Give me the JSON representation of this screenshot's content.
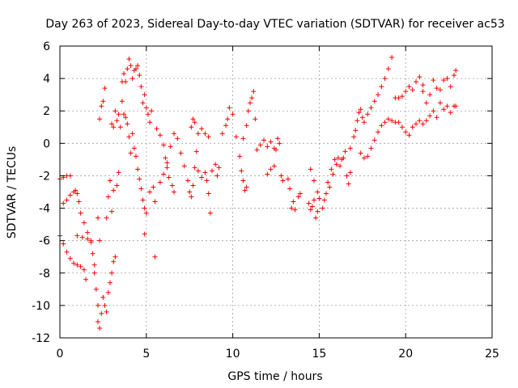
{
  "chart_data": {
    "type": "scatter",
    "title": "Day 263 of 2023, Sidereal Day-to-day VTEC variation (SDTVAR) for receiver ac53",
    "xlabel": "GPS time / hours",
    "ylabel": "SDTVAR / TECUs",
    "xlim": [
      0,
      25
    ],
    "ylim": [
      -12,
      6
    ],
    "xticks": [
      "0",
      "5",
      "10",
      "15",
      "20",
      "25"
    ],
    "yticks": [
      "6",
      "4",
      "2",
      "0",
      "-2",
      "-4",
      "-6",
      "-8",
      "-10",
      "-12"
    ],
    "grid": true,
    "marker": "+",
    "color": "#ff0000",
    "series": [
      {
        "name": "SDTVAR",
        "points": [
          [
            0.0,
            -2.2
          ],
          [
            0.2,
            -2.1
          ],
          [
            0.4,
            -2.0
          ],
          [
            0.6,
            -2.0
          ],
          [
            0.0,
            -5.7
          ],
          [
            0.2,
            -6.2
          ],
          [
            0.4,
            -6.7
          ],
          [
            0.6,
            -7.1
          ],
          [
            0.8,
            -7.4
          ],
          [
            1.0,
            -7.5
          ],
          [
            1.2,
            -7.6
          ],
          [
            1.4,
            -7.8
          ],
          [
            1.5,
            -8.4
          ],
          [
            0.2,
            -3.7
          ],
          [
            0.4,
            -3.5
          ],
          [
            0.6,
            -3.2
          ],
          [
            0.8,
            -3.0
          ],
          [
            0.9,
            -2.9
          ],
          [
            1.0,
            -3.1
          ],
          [
            1.1,
            -3.6
          ],
          [
            1.2,
            -4.3
          ],
          [
            1.4,
            -4.9
          ],
          [
            1.6,
            -5.5
          ],
          [
            1.8,
            -6.1
          ],
          [
            1.9,
            -6.8
          ],
          [
            2.0,
            -7.5
          ],
          [
            1.0,
            -5.7
          ],
          [
            1.3,
            -5.8
          ],
          [
            1.6,
            -5.9
          ],
          [
            1.8,
            -6.0
          ],
          [
            2.0,
            -8.0
          ],
          [
            2.1,
            -9.0
          ],
          [
            2.2,
            -10.0
          ],
          [
            2.2,
            -11.0
          ],
          [
            2.3,
            -11.4
          ],
          [
            2.4,
            -10.5
          ],
          [
            2.5,
            -9.5
          ],
          [
            2.6,
            -10.0
          ],
          [
            2.7,
            -10.4
          ],
          [
            2.8,
            -9.2
          ],
          [
            2.9,
            -8.6
          ],
          [
            3.0,
            -8.0
          ],
          [
            3.1,
            -7.3
          ],
          [
            3.2,
            -7.0
          ],
          [
            2.2,
            -4.6
          ],
          [
            2.3,
            -6.0
          ],
          [
            2.3,
            1.5
          ],
          [
            2.4,
            2.3
          ],
          [
            2.5,
            2.6
          ],
          [
            2.6,
            3.4
          ],
          [
            2.7,
            -4.6
          ],
          [
            2.8,
            -3.3
          ],
          [
            2.9,
            -2.3
          ],
          [
            3.0,
            1.2
          ],
          [
            3.1,
            1.0
          ],
          [
            3.2,
            2.0
          ],
          [
            3.3,
            1.4
          ],
          [
            3.4,
            1.8
          ],
          [
            3.5,
            1.0
          ],
          [
            3.0,
            -4.2
          ],
          [
            3.1,
            -2.9
          ],
          [
            3.3,
            -2.6
          ],
          [
            3.4,
            -1.8
          ],
          [
            3.6,
            3.8
          ],
          [
            3.7,
            4.3
          ],
          [
            3.8,
            3.8
          ],
          [
            3.9,
            4.6
          ],
          [
            4.0,
            5.2
          ],
          [
            4.1,
            4.8
          ],
          [
            4.2,
            4.0
          ],
          [
            4.3,
            4.5
          ],
          [
            4.4,
            4.6
          ],
          [
            4.5,
            4.8
          ],
          [
            4.6,
            4.2
          ],
          [
            4.7,
            3.5
          ],
          [
            4.8,
            2.5
          ],
          [
            4.9,
            3.0
          ],
          [
            5.0,
            2.2
          ],
          [
            5.1,
            1.8
          ],
          [
            5.2,
            1.3
          ],
          [
            5.3,
            2.0
          ],
          [
            3.6,
            2.6
          ],
          [
            3.7,
            1.8
          ],
          [
            3.8,
            1.6
          ],
          [
            3.9,
            1.2
          ],
          [
            4.0,
            0.4
          ],
          [
            4.1,
            -0.6
          ],
          [
            4.2,
            0.6
          ],
          [
            4.3,
            -0.3
          ],
          [
            4.4,
            -0.8
          ],
          [
            4.5,
            -1.6
          ],
          [
            4.6,
            -2.2
          ],
          [
            4.7,
            -2.8
          ],
          [
            4.8,
            -3.5
          ],
          [
            4.9,
            -4.0
          ],
          [
            5.0,
            -4.3
          ],
          [
            5.2,
            -3.0
          ],
          [
            5.4,
            -2.7
          ],
          [
            5.5,
            -3.6
          ],
          [
            4.9,
            -5.6
          ],
          [
            5.5,
            -7.0
          ],
          [
            5.6,
            0.9
          ],
          [
            5.8,
            0.5
          ],
          [
            6.0,
            -0.1
          ],
          [
            6.1,
            -0.9
          ],
          [
            6.2,
            -1.5
          ],
          [
            6.3,
            -2.1
          ],
          [
            6.5,
            -2.6
          ],
          [
            6.6,
            -3.0
          ],
          [
            5.8,
            -2.4
          ],
          [
            6.0,
            -1.9
          ],
          [
            6.2,
            -1.2
          ],
          [
            6.4,
            -0.2
          ],
          [
            6.6,
            0.6
          ],
          [
            6.8,
            0.3
          ],
          [
            7.0,
            -0.6
          ],
          [
            7.2,
            -1.4
          ],
          [
            7.4,
            -2.3
          ],
          [
            7.5,
            -3.0
          ],
          [
            7.6,
            -3.3
          ],
          [
            7.7,
            -2.6
          ],
          [
            7.8,
            -1.5
          ],
          [
            7.9,
            -0.5
          ],
          [
            7.6,
            1.0
          ],
          [
            7.7,
            1.5
          ],
          [
            7.8,
            1.3
          ],
          [
            8.0,
            0.6
          ],
          [
            8.2,
            0.9
          ],
          [
            8.4,
            0.6
          ],
          [
            8.6,
            0.4
          ],
          [
            8.0,
            -1.7
          ],
          [
            8.2,
            -2.1
          ],
          [
            8.4,
            -1.8
          ],
          [
            8.5,
            -2.3
          ],
          [
            8.6,
            -3.1
          ],
          [
            8.7,
            -4.3
          ],
          [
            8.8,
            -1.7
          ],
          [
            9.0,
            -1.3
          ],
          [
            9.1,
            -2.0
          ],
          [
            9.2,
            -1.5
          ],
          [
            9.4,
            0.6
          ],
          [
            9.6,
            1.1
          ],
          [
            9.7,
            1.5
          ],
          [
            9.8,
            2.2
          ],
          [
            10.0,
            1.8
          ],
          [
            10.2,
            0.4
          ],
          [
            10.4,
            -0.8
          ],
          [
            10.5,
            -1.7
          ],
          [
            10.6,
            -2.3
          ],
          [
            10.7,
            -2.9
          ],
          [
            10.8,
            -2.7
          ],
          [
            10.6,
            0.3
          ],
          [
            10.8,
            1.1
          ],
          [
            10.9,
            2.0
          ],
          [
            11.0,
            2.5
          ],
          [
            11.1,
            2.8
          ],
          [
            11.2,
            3.2
          ],
          [
            11.3,
            1.5
          ],
          [
            11.4,
            -0.4
          ],
          [
            11.6,
            -0.1
          ],
          [
            11.8,
            0.2
          ],
          [
            12.0,
            -0.2
          ],
          [
            12.2,
            0.1
          ],
          [
            12.4,
            -0.3
          ],
          [
            12.0,
            -1.9
          ],
          [
            12.2,
            -1.6
          ],
          [
            12.4,
            -1.4
          ],
          [
            12.5,
            -0.4
          ],
          [
            12.6,
            0.3
          ],
          [
            12.7,
            0.0
          ],
          [
            12.8,
            -2.0
          ],
          [
            12.9,
            -2.3
          ],
          [
            13.2,
            -2.2
          ],
          [
            13.3,
            -2.8
          ],
          [
            13.4,
            -4.0
          ],
          [
            13.5,
            -3.6
          ],
          [
            13.6,
            -4.1
          ],
          [
            13.8,
            -3.3
          ],
          [
            13.9,
            -3.1
          ],
          [
            14.4,
            -3.7
          ],
          [
            14.5,
            -4.1
          ],
          [
            14.6,
            -3.9
          ],
          [
            14.7,
            -3.5
          ],
          [
            14.8,
            -4.6
          ],
          [
            14.9,
            -4.2
          ],
          [
            14.5,
            -1.6
          ],
          [
            14.7,
            -2.3
          ],
          [
            14.9,
            -3.0
          ],
          [
            15.0,
            -3.4
          ],
          [
            15.2,
            -4.0
          ],
          [
            15.3,
            -3.5
          ],
          [
            15.4,
            -3.1
          ],
          [
            15.5,
            -2.4
          ],
          [
            15.6,
            -2.7
          ],
          [
            15.7,
            -1.6
          ],
          [
            15.8,
            -1.9
          ],
          [
            15.9,
            -1.0
          ],
          [
            16.0,
            -1.3
          ],
          [
            16.1,
            -0.9
          ],
          [
            16.2,
            -1.4
          ],
          [
            16.3,
            -1.0
          ],
          [
            16.4,
            -0.9
          ],
          [
            16.5,
            -0.5
          ],
          [
            16.6,
            -2.0
          ],
          [
            16.7,
            -2.5
          ],
          [
            16.8,
            -1.8
          ],
          [
            16.8,
            -0.3
          ],
          [
            17.0,
            0.4
          ],
          [
            17.1,
            0.8
          ],
          [
            17.2,
            1.4
          ],
          [
            17.3,
            1.9
          ],
          [
            17.4,
            2.1
          ],
          [
            17.5,
            1.6
          ],
          [
            17.4,
            -0.6
          ],
          [
            17.6,
            -0.9
          ],
          [
            17.8,
            -0.8
          ],
          [
            18.0,
            -0.3
          ],
          [
            18.2,
            0.2
          ],
          [
            18.4,
            0.7
          ],
          [
            18.6,
            1.1
          ],
          [
            18.8,
            1.3
          ],
          [
            19.0,
            1.5
          ],
          [
            19.2,
            1.4
          ],
          [
            19.4,
            1.3
          ],
          [
            19.6,
            1.3
          ],
          [
            17.6,
            1.3
          ],
          [
            17.8,
            1.8
          ],
          [
            18.0,
            2.2
          ],
          [
            18.2,
            2.6
          ],
          [
            18.4,
            3.0
          ],
          [
            18.6,
            3.5
          ],
          [
            18.8,
            4.0
          ],
          [
            19.0,
            4.6
          ],
          [
            19.2,
            5.3
          ],
          [
            19.4,
            2.8
          ],
          [
            19.6,
            2.8
          ],
          [
            19.8,
            2.9
          ],
          [
            20.0,
            3.2
          ],
          [
            20.2,
            3.5
          ],
          [
            20.4,
            3.3
          ],
          [
            20.6,
            3.8
          ],
          [
            20.8,
            4.1
          ],
          [
            21.0,
            3.6
          ],
          [
            21.0,
            3.2
          ],
          [
            21.2,
            2.5
          ],
          [
            21.4,
            3.0
          ],
          [
            21.6,
            3.9
          ],
          [
            21.8,
            3.4
          ],
          [
            22.0,
            3.3
          ],
          [
            22.2,
            3.9
          ],
          [
            22.4,
            4.0
          ],
          [
            22.6,
            3.5
          ],
          [
            22.8,
            4.2
          ],
          [
            22.9,
            4.5
          ],
          [
            19.8,
            1.0
          ],
          [
            20.0,
            0.7
          ],
          [
            20.2,
            0.5
          ],
          [
            20.4,
            1.0
          ],
          [
            20.6,
            1.2
          ],
          [
            20.8,
            1.4
          ],
          [
            21.0,
            1.2
          ],
          [
            21.2,
            1.4
          ],
          [
            21.4,
            1.7
          ],
          [
            21.6,
            2.0
          ],
          [
            21.8,
            1.6
          ],
          [
            22.0,
            2.5
          ],
          [
            22.2,
            2.1
          ],
          [
            22.4,
            2.3
          ],
          [
            22.6,
            1.9
          ],
          [
            22.8,
            2.3
          ],
          [
            22.9,
            2.3
          ]
        ]
      }
    ]
  }
}
